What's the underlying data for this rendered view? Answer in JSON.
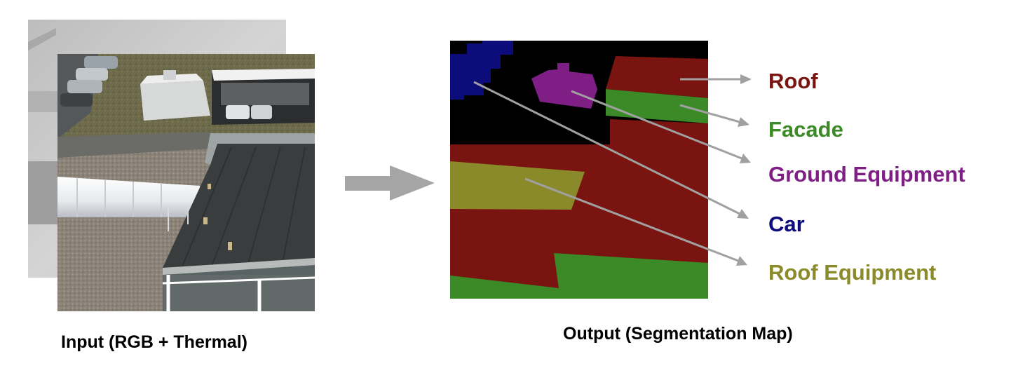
{
  "input": {
    "caption": "Input (RGB + Thermal)",
    "images": [
      {
        "name": "thermal-image",
        "kind": "thermal"
      },
      {
        "name": "rgb-image",
        "kind": "rgb"
      }
    ]
  },
  "process_arrow": {
    "icon": "right-arrow-icon",
    "color": "#a5a5a5"
  },
  "output": {
    "caption": "Output (Segmentation Map)",
    "background_color": "#000000"
  },
  "classes": [
    {
      "id": "roof",
      "label": "Roof",
      "color": "#7a1410"
    },
    {
      "id": "facade",
      "label": "Facade",
      "color": "#3b8a27"
    },
    {
      "id": "ground-equipment",
      "label": "Ground Equipment",
      "color": "#7f1f86"
    },
    {
      "id": "car",
      "label": "Car",
      "color": "#0c0c7a"
    },
    {
      "id": "roof-equipment",
      "label": "Roof Equipment",
      "color": "#8a8a2a"
    }
  ]
}
